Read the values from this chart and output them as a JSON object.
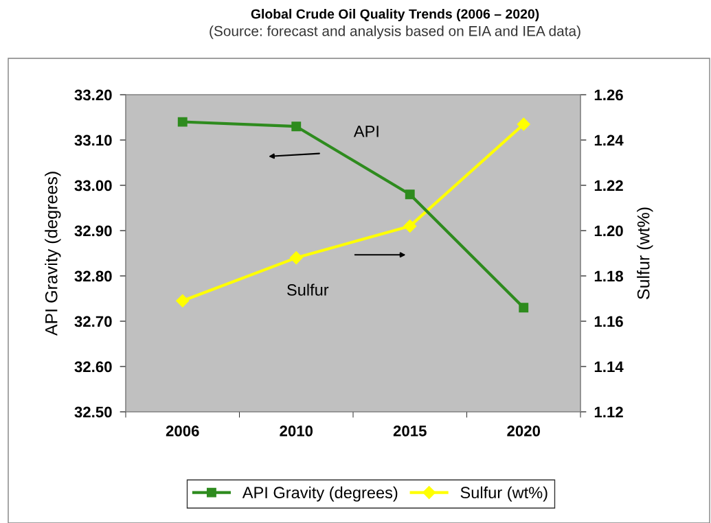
{
  "chart_data": {
    "type": "line",
    "title": "Global Crude Oil Quality Trends (2006 – 2020)",
    "subtitle": "(Source: forecast and analysis based on EIA and IEA data)",
    "ylabel": "API Gravity (degrees)",
    "y2label": "Sulfur (wt%)",
    "categories": [
      "2006",
      "2010",
      "2015",
      "2020"
    ],
    "series": [
      {
        "name": "API Gravity (degrees)",
        "color": "#2e8b1e",
        "marker": "square",
        "values": [
          33.14,
          33.13,
          32.98,
          32.73
        ]
      },
      {
        "name": "Sulfur (wt%)",
        "color": "#ffff00",
        "marker": "diamond",
        "axis": "y2",
        "values": [
          1.169,
          1.188,
          1.202,
          1.247
        ]
      }
    ],
    "ylim": [
      32.5,
      33.2
    ],
    "yticks": [
      {
        "value": 32.5,
        "label": "32.50"
      },
      {
        "value": 32.6,
        "label": "32.60"
      },
      {
        "value": 32.7,
        "label": "32.70"
      },
      {
        "value": 32.8,
        "label": "32.80"
      },
      {
        "value": 32.9,
        "label": "32.90"
      },
      {
        "value": 33.0,
        "label": "33.00"
      },
      {
        "value": 33.1,
        "label": "33.10"
      },
      {
        "value": 33.2,
        "label": "33.20"
      }
    ],
    "y2lim": [
      1.12,
      1.26
    ],
    "y2ticks": [
      {
        "value": 1.12,
        "label": "1.12"
      },
      {
        "value": 1.14,
        "label": "1.14"
      },
      {
        "value": 1.16,
        "label": "1.16"
      },
      {
        "value": 1.18,
        "label": "1.18"
      },
      {
        "value": 1.2,
        "label": "1.20"
      },
      {
        "value": 1.22,
        "label": "1.22"
      },
      {
        "value": 1.24,
        "label": "1.24"
      },
      {
        "value": 1.26,
        "label": "1.26"
      }
    ],
    "annotations": [
      "API",
      "Sulfur"
    ],
    "grid": false,
    "legend": "bottom",
    "line_style": "solid"
  }
}
